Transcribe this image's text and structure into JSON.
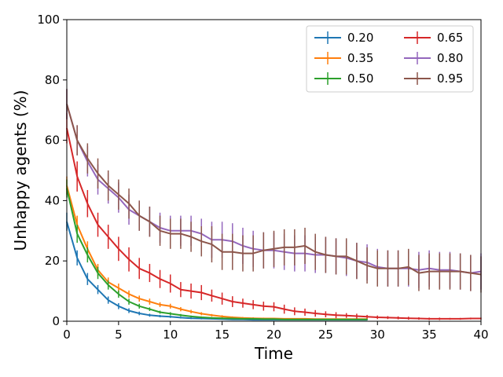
{
  "chart_data": {
    "type": "line",
    "title": "",
    "xlabel": "Time",
    "ylabel": "Unhappy agents (%)",
    "xlim": [
      0,
      40
    ],
    "ylim": [
      0,
      100
    ],
    "xticks": [
      0,
      5,
      10,
      15,
      20,
      25,
      30,
      35,
      40
    ],
    "yticks": [
      0,
      20,
      40,
      60,
      80,
      100
    ],
    "grid": false,
    "legend_position": "top-right",
    "legend_columns": 2,
    "series": [
      {
        "name": "0.20",
        "color": "#1f77b4",
        "x": [
          0,
          1,
          2,
          3,
          4,
          5,
          6,
          7,
          8,
          9,
          10,
          11,
          12,
          13,
          14,
          15,
          16,
          17,
          18,
          19,
          20,
          21,
          22,
          23,
          24,
          25,
          26,
          27,
          28,
          29
        ],
        "y": [
          33,
          21,
          14,
          10.5,
          7,
          5,
          3.5,
          2.6,
          2,
          1.7,
          1.5,
          1.2,
          1,
          0.9,
          0.8,
          0.7,
          0.6,
          0.6,
          0.5,
          0.5,
          0.5,
          0.5,
          0.5,
          0.5,
          0.5,
          0.5,
          0.5,
          0.5,
          0.5,
          0.5
        ],
        "err": [
          3,
          2.5,
          2,
          1.5,
          1.2,
          1,
          0.8,
          0.6,
          0.5,
          0.4,
          0.4,
          0.3,
          0.3,
          0.3,
          0.2,
          0.2,
          0.2,
          0.2,
          0.2,
          0.2,
          0.2,
          0.2,
          0.2,
          0.2,
          0.2,
          0.2,
          0.2,
          0.2,
          0.2,
          0.2
        ]
      },
      {
        "name": "0.35",
        "color": "#ff7f0e",
        "x": [
          0,
          1,
          2,
          3,
          4,
          5,
          6,
          7,
          8,
          9,
          10,
          11,
          12,
          13,
          14,
          15,
          16,
          17,
          18,
          19,
          20,
          21,
          22,
          23,
          24,
          25,
          26,
          27,
          28,
          29
        ],
        "y": [
          45,
          32,
          24,
          17,
          13,
          11,
          9,
          7.5,
          6.5,
          5.5,
          5,
          4,
          3.2,
          2.5,
          2,
          1.6,
          1.3,
          1.1,
          1,
          0.9,
          0.9,
          0.8,
          0.8,
          0.8,
          0.7,
          0.7,
          0.7,
          0.7,
          0.7,
          0.7
        ],
        "err": [
          3,
          3,
          2.5,
          2,
          1.5,
          1.5,
          1.2,
          1,
          1,
          0.8,
          0.8,
          0.7,
          0.6,
          0.5,
          0.4,
          0.4,
          0.3,
          0.3,
          0.3,
          0.3,
          0.2,
          0.2,
          0.2,
          0.2,
          0.2,
          0.2,
          0.2,
          0.2,
          0.2,
          0.2
        ]
      },
      {
        "name": "0.50",
        "color": "#2ca02c",
        "x": [
          0,
          1,
          2,
          3,
          4,
          5,
          6,
          7,
          8,
          9,
          10,
          11,
          12,
          13,
          14,
          15,
          16,
          17,
          18,
          19,
          20,
          21,
          22,
          23,
          24,
          25,
          26,
          27,
          28,
          29
        ],
        "y": [
          44,
          29,
          22,
          16,
          12,
          9,
          6.5,
          5,
          4,
          3,
          2.5,
          2,
          1.6,
          1.3,
          1.1,
          1,
          0.9,
          0.8,
          0.8,
          0.7,
          0.7,
          0.6,
          0.6,
          0.6,
          0.6,
          0.6,
          0.6,
          0.6,
          0.6,
          0.6
        ],
        "err": [
          3,
          3,
          2.5,
          2,
          1.5,
          1.2,
          1,
          0.8,
          0.6,
          0.5,
          0.5,
          0.4,
          0.3,
          0.3,
          0.3,
          0.2,
          0.2,
          0.2,
          0.2,
          0.2,
          0.2,
          0.2,
          0.2,
          0.2,
          0.2,
          0.2,
          0.2,
          0.2,
          0.2,
          0.2
        ]
      },
      {
        "name": "0.65",
        "color": "#d62728",
        "x": [
          0,
          1,
          2,
          3,
          4,
          5,
          6,
          7,
          8,
          9,
          10,
          11,
          12,
          13,
          14,
          15,
          16,
          17,
          18,
          19,
          20,
          21,
          22,
          23,
          24,
          25,
          26,
          27,
          28,
          29,
          30,
          31,
          32,
          33,
          34,
          35,
          36,
          37,
          38,
          39,
          40
        ],
        "y": [
          64,
          48,
          39,
          32,
          28,
          24,
          20.5,
          17.5,
          16,
          14,
          12.5,
          10.5,
          10,
          9.5,
          8.5,
          7.5,
          6.5,
          6,
          5.5,
          5,
          4.8,
          4,
          3.3,
          3,
          2.6,
          2.3,
          2,
          1.9,
          1.7,
          1.5,
          1.3,
          1.2,
          1.1,
          1,
          0.9,
          0.8,
          0.8,
          0.8,
          0.8,
          0.9,
          0.9
        ],
        "err": [
          5,
          5,
          4.5,
          4,
          4,
          4,
          4,
          3.5,
          3,
          3,
          3,
          2.5,
          2.5,
          2.5,
          2,
          2,
          1.8,
          1.5,
          1.5,
          1.5,
          1.5,
          1.5,
          1.3,
          1.2,
          1.1,
          1,
          1,
          0.8,
          0.8,
          0.6,
          0.6,
          0.5,
          0.5,
          0.5,
          0.4,
          0.4,
          0.4,
          0.3,
          0.3,
          0.3,
          0.3
        ]
      },
      {
        "name": "0.80",
        "color": "#9467bd",
        "x": [
          0,
          1,
          2,
          3,
          4,
          5,
          6,
          7,
          8,
          9,
          10,
          11,
          12,
          13,
          14,
          15,
          16,
          17,
          18,
          19,
          20,
          21,
          22,
          23,
          24,
          25,
          26,
          27,
          28,
          29,
          30,
          31,
          32,
          33,
          34,
          35,
          36,
          37,
          38,
          39,
          40
        ],
        "y": [
          72,
          60,
          53,
          47,
          44,
          41,
          37,
          35,
          33,
          31,
          30,
          30,
          30,
          29,
          27,
          27,
          26.5,
          25,
          24,
          23.5,
          23.5,
          23,
          22.5,
          22.5,
          22,
          22,
          21.5,
          21,
          20,
          19.5,
          18,
          17.5,
          17.5,
          17.5,
          17,
          17.5,
          17,
          17,
          16.5,
          16,
          16.5
        ],
        "err": [
          5,
          5,
          5,
          5,
          5,
          5,
          5,
          5,
          5,
          5,
          5,
          5,
          5,
          5,
          6,
          6,
          6,
          6,
          6,
          6,
          6,
          6,
          6,
          6,
          6,
          6,
          6,
          6,
          6,
          6,
          6,
          6,
          6,
          6,
          6,
          6,
          6,
          6,
          6,
          6,
          6
        ]
      },
      {
        "name": "0.95",
        "color": "#8c564b",
        "x": [
          0,
          1,
          2,
          3,
          4,
          5,
          6,
          7,
          8,
          9,
          10,
          11,
          12,
          13,
          14,
          15,
          16,
          17,
          18,
          19,
          20,
          21,
          22,
          23,
          24,
          25,
          26,
          27,
          28,
          29,
          30,
          31,
          32,
          33,
          34,
          35,
          36,
          37,
          38,
          39,
          40
        ],
        "y": [
          72,
          60,
          54,
          49,
          45,
          42,
          39,
          35,
          33,
          30,
          29,
          29,
          28,
          26.5,
          25.5,
          23,
          23,
          22.5,
          22.5,
          23.5,
          24,
          24.5,
          24.5,
          25,
          23,
          22,
          21.5,
          21.5,
          20,
          18.5,
          17.5,
          17.5,
          17.5,
          18,
          16,
          16.5,
          16.5,
          16.5,
          16.5,
          16,
          15.5
        ],
        "err": [
          5,
          5,
          5,
          5,
          5,
          5,
          5,
          5,
          5,
          5,
          5,
          5,
          5,
          5,
          6,
          6,
          6,
          6,
          6,
          6,
          6,
          6,
          6,
          6,
          6,
          6,
          6,
          6,
          6,
          6,
          6,
          6,
          6,
          6,
          6,
          6,
          6,
          6,
          6,
          6,
          6
        ]
      }
    ]
  }
}
